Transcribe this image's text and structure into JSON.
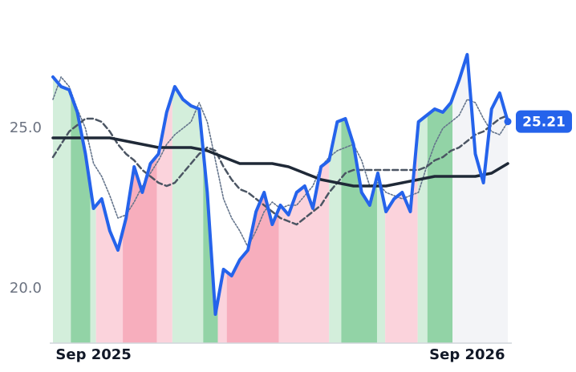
{
  "chart_data": {
    "type": "line",
    "x": [
      0,
      1,
      2,
      3,
      4,
      5,
      6,
      7,
      8,
      9,
      10,
      11,
      12,
      13,
      14,
      15,
      16,
      17,
      18,
      19,
      20,
      21,
      22,
      23,
      24,
      25,
      26,
      27,
      28,
      29,
      30,
      31,
      32,
      33,
      34,
      35,
      36,
      37,
      38,
      39,
      40,
      41,
      42,
      43,
      44,
      45,
      46,
      47,
      48,
      49,
      50,
      51,
      52,
      53,
      54,
      55,
      56
    ],
    "xlim": [
      0,
      56
    ],
    "xticks": [
      {
        "value": 5,
        "label": "Sep 2025"
      },
      {
        "value": 51,
        "label": "Sep 2026"
      }
    ],
    "ylim": [
      18.3,
      28.2
    ],
    "yticks": [
      {
        "value": 20,
        "label": "20.0"
      },
      {
        "value": 25,
        "label": "25.0"
      }
    ],
    "grid": false,
    "last_value_badge": true,
    "series": [
      {
        "color": "#2563eb",
        "width": 4,
        "dash": "none",
        "values": [
          26.6,
          26.3,
          26.2,
          25.5,
          24.2,
          22.5,
          22.8,
          21.8,
          21.2,
          22.2,
          23.8,
          23.0,
          23.9,
          24.2,
          25.5,
          26.3,
          25.9,
          25.7,
          25.6,
          23.0,
          19.2,
          20.6,
          20.4,
          20.9,
          21.2,
          22.4,
          23.0,
          22.0,
          22.6,
          22.3,
          23.0,
          23.2,
          22.5,
          23.8,
          24.0,
          25.2,
          25.3,
          24.5,
          23.0,
          22.6,
          23.6,
          22.4,
          22.8,
          23.0,
          22.4,
          25.2,
          25.4,
          25.6,
          25.5,
          25.8,
          26.5,
          27.3,
          24.2,
          23.3,
          25.6,
          26.1,
          25.21
        ]
      },
      {
        "color": "#1f2937",
        "width": 3.5,
        "dash": "none",
        "values": [
          24.7,
          24.7,
          24.7,
          24.7,
          24.7,
          24.7,
          24.7,
          24.7,
          24.65,
          24.6,
          24.55,
          24.5,
          24.45,
          24.4,
          24.4,
          24.4,
          24.4,
          24.4,
          24.35,
          24.3,
          24.2,
          24.1,
          24.0,
          23.9,
          23.9,
          23.9,
          23.9,
          23.9,
          23.85,
          23.8,
          23.7,
          23.6,
          23.5,
          23.4,
          23.35,
          23.3,
          23.25,
          23.2,
          23.2,
          23.2,
          23.2,
          23.2,
          23.25,
          23.3,
          23.35,
          23.4,
          23.45,
          23.5,
          23.5,
          23.5,
          23.5,
          23.5,
          23.5,
          23.55,
          23.6,
          23.75,
          23.9
        ]
      },
      {
        "color": "#4b5563",
        "width": 2.5,
        "dash": "7 4",
        "values": [
          24.1,
          24.5,
          24.9,
          25.1,
          25.3,
          25.3,
          25.2,
          24.9,
          24.5,
          24.2,
          24.0,
          23.7,
          23.5,
          23.3,
          23.2,
          23.3,
          23.6,
          23.9,
          24.2,
          24.4,
          24.3,
          23.8,
          23.4,
          23.1,
          23.0,
          22.8,
          22.6,
          22.4,
          22.2,
          22.1,
          22.0,
          22.2,
          22.4,
          22.6,
          23.0,
          23.3,
          23.6,
          23.7,
          23.7,
          23.7,
          23.7,
          23.7,
          23.7,
          23.7,
          23.7,
          23.7,
          23.8,
          24.0,
          24.1,
          24.3,
          24.4,
          24.6,
          24.8,
          24.9,
          25.1,
          25.3,
          25.4
        ]
      },
      {
        "color": "#64748b",
        "width": 1.6,
        "dash": "2 2",
        "values": [
          25.9,
          26.6,
          26.3,
          25.6,
          25.0,
          23.9,
          23.5,
          22.9,
          22.2,
          22.3,
          22.7,
          23.2,
          23.6,
          24.0,
          24.5,
          24.8,
          25.0,
          25.2,
          25.8,
          25.2,
          24.0,
          22.8,
          22.2,
          21.8,
          21.3,
          21.8,
          22.4,
          22.7,
          22.5,
          22.6,
          22.6,
          22.9,
          23.2,
          23.8,
          24.1,
          24.3,
          24.4,
          24.5,
          24.0,
          23.2,
          23.3,
          23.0,
          22.9,
          22.8,
          22.9,
          23.0,
          23.8,
          24.5,
          25.0,
          25.2,
          25.4,
          25.9,
          25.8,
          25.3,
          24.9,
          24.8,
          25.2
        ]
      }
    ],
    "bands": [
      {
        "from": 0,
        "to": 2.2,
        "color": "#d3eedb"
      },
      {
        "from": 2.2,
        "to": 4.6,
        "color": "#92d3a6"
      },
      {
        "from": 4.6,
        "to": 5.3,
        "color": "#d3eedb"
      },
      {
        "from": 5.3,
        "to": 8.6,
        "color": "#fbd3dc"
      },
      {
        "from": 8.6,
        "to": 12.8,
        "color": "#f7aebd"
      },
      {
        "from": 12.8,
        "to": 14.7,
        "color": "#fbd3dc"
      },
      {
        "from": 14.7,
        "to": 18.5,
        "color": "#d3eedb"
      },
      {
        "from": 18.5,
        "to": 20.3,
        "color": "#92d3a6"
      },
      {
        "from": 20.3,
        "to": 21.4,
        "color": "#fbd3dc"
      },
      {
        "from": 21.4,
        "to": 27.8,
        "color": "#f7aebd"
      },
      {
        "from": 27.8,
        "to": 34,
        "color": "#fbd3dc"
      },
      {
        "from": 34,
        "to": 35.5,
        "color": "#d3eedb"
      },
      {
        "from": 35.5,
        "to": 39.9,
        "color": "#92d3a6"
      },
      {
        "from": 39.9,
        "to": 40.9,
        "color": "#d3eedb"
      },
      {
        "from": 40.9,
        "to": 44.9,
        "color": "#fbd3dc"
      },
      {
        "from": 44.9,
        "to": 46.1,
        "color": "#d3eedb"
      },
      {
        "from": 46.1,
        "to": 49.2,
        "color": "#92d3a6"
      },
      {
        "from": 49.2,
        "to": 56,
        "color": "#f3f4f7"
      }
    ]
  }
}
